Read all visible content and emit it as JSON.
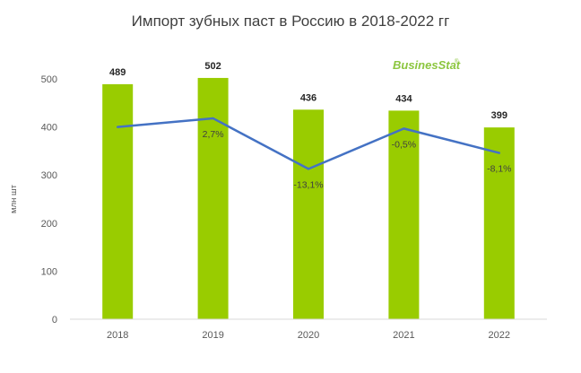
{
  "title": "Импорт зубных паст в Россию в 2018-2022 гг",
  "logo": {
    "text": "BusinesStat",
    "mark": "®"
  },
  "chart_data": {
    "type": "bar",
    "title": "Импорт зубных паст в Россию в 2018-2022 гг",
    "categories": [
      "2018",
      "2019",
      "2020",
      "2021",
      "2022"
    ],
    "series": [
      {
        "type": "bar",
        "values": [
          489,
          502,
          436,
          434,
          399
        ],
        "color": "#99cc00"
      },
      {
        "type": "line",
        "values": [
          null,
          2.7,
          -13.1,
          -0.5,
          -8.1
        ],
        "labels": [
          "",
          "2,7%",
          "-13,1%",
          "-0,5%",
          "-8,1%"
        ],
        "color": "#4472c4"
      }
    ],
    "ylabel": "млн шт",
    "ylim": [
      0,
      500
    ],
    "yticks": [
      0,
      100,
      200,
      300,
      400,
      500
    ],
    "grid": false,
    "legend": "none"
  }
}
